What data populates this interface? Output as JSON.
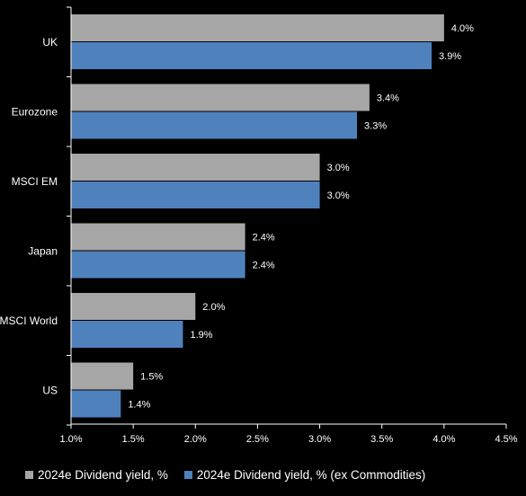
{
  "chart_data": {
    "type": "bar",
    "orientation": "horizontal",
    "categories": [
      "UK",
      "Eurozone",
      "MSCI EM",
      "Japan",
      "MSCI World",
      "US"
    ],
    "series": [
      {
        "name": "2024e Dividend yield, %",
        "color": "#a6a6a6",
        "values": [
          4.0,
          3.4,
          3.0,
          2.4,
          2.0,
          1.5
        ],
        "labels": [
          "4.0%",
          "3.4%",
          "3.0%",
          "2.4%",
          "2.0%",
          "1.5%"
        ]
      },
      {
        "name": "2024e Dividend yield, % (ex Commodities)",
        "color": "#4f81bd",
        "values": [
          3.9,
          3.3,
          3.0,
          2.4,
          1.9,
          1.4
        ],
        "labels": [
          "3.9%",
          "3.3%",
          "3.0%",
          "2.4%",
          "1.9%",
          "1.4%"
        ]
      }
    ],
    "xlim": [
      1.0,
      4.5
    ],
    "xticks": [
      1.0,
      1.5,
      2.0,
      2.5,
      3.0,
      3.5,
      4.0,
      4.5
    ],
    "xtick_labels": [
      "1.0%",
      "1.5%",
      "2.0%",
      "2.5%",
      "3.0%",
      "3.5%",
      "4.0%",
      "4.5%"
    ],
    "grid": false,
    "legend_position": "bottom",
    "title": "",
    "xlabel": "",
    "ylabel": ""
  }
}
